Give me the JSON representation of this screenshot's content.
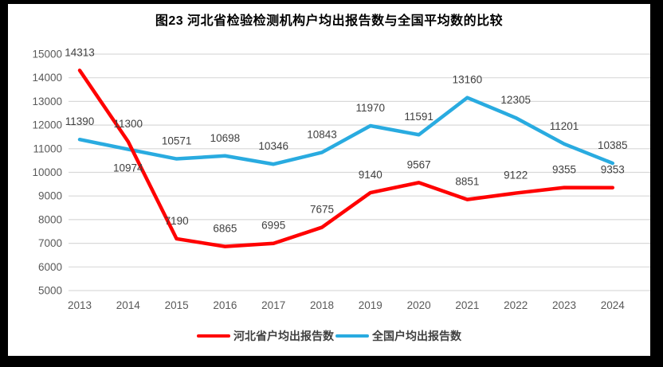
{
  "chart": {
    "title": "图23  河北省检验检测机构户均出报告数与全国平均数的比较"
  },
  "chart_data": {
    "type": "line",
    "categories": [
      "2013",
      "2014",
      "2015",
      "2016",
      "2017",
      "2018",
      "2019",
      "2020",
      "2021",
      "2022",
      "2023",
      "2024"
    ],
    "series": [
      {
        "name": "河北省户均出报告数",
        "color": "#FF0000",
        "values": [
          14313,
          11300,
          7190,
          6865,
          6995,
          7675,
          9140,
          9567,
          8851,
          9122,
          9355,
          9353
        ]
      },
      {
        "name": "全国户均出报告数",
        "color": "#29ABE0",
        "values": [
          11390,
          10974,
          10571,
          10698,
          10346,
          10843,
          11970,
          11591,
          13160,
          12305,
          11201,
          10385
        ]
      }
    ],
    "ylim": [
      5000,
      15000
    ],
    "ytick_step": 1000,
    "grid": true,
    "legend_position": "bottom",
    "data_labels": true,
    "labels_below": [
      {
        "series": 1,
        "index": 1
      }
    ],
    "colors": {
      "grid": "#D9D9D9",
      "axis_text": "#595959",
      "data_label": "#404040",
      "frame": "#000000",
      "background": "#FFFFFF"
    }
  }
}
